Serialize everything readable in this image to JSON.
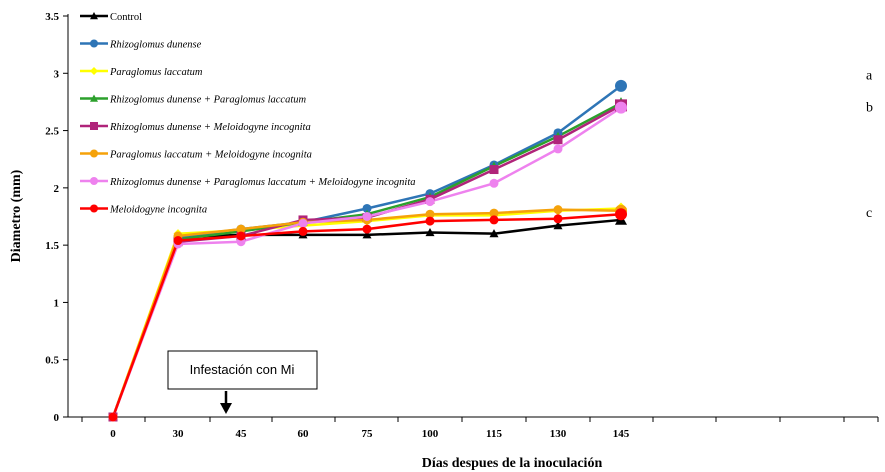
{
  "chart_data": {
    "type": "line",
    "title": "",
    "xlabel": "Días despues de la inoculación",
    "ylabel": "Diametro (mm)",
    "categories": [
      "0",
      "30",
      "45",
      "60",
      "75",
      "100",
      "115",
      "130",
      "145"
    ],
    "ylim": [
      0,
      3.5
    ],
    "yticks": [
      "0",
      "0.5",
      "1",
      "1.5",
      "2",
      "2.5",
      "3",
      "3.5"
    ],
    "grid": false,
    "legend_position": "top-left",
    "series": [
      {
        "name": "Control",
        "color": "#000000",
        "marker": "triangle",
        "italic": false,
        "values": [
          0,
          1.57,
          1.59,
          1.59,
          1.59,
          1.61,
          1.6,
          1.67,
          1.72
        ]
      },
      {
        "name": "Rhizoglomus dunense",
        "color": "#2e75b6",
        "marker": "circle",
        "italic": true,
        "values": [
          0,
          1.57,
          1.64,
          1.7,
          1.82,
          1.95,
          2.2,
          2.48,
          2.89
        ]
      },
      {
        "name": "Paraglomus laccatum",
        "color": "#ffff00",
        "marker": "diamond",
        "italic": true,
        "values": [
          0,
          1.6,
          1.63,
          1.67,
          1.71,
          1.76,
          1.76,
          1.8,
          1.82
        ]
      },
      {
        "name": "Rhizoglomus dunense + Paraglomus laccatum",
        "color": "#2ca02c",
        "marker": "triangle",
        "italic": true,
        "values": [
          0,
          1.55,
          1.62,
          1.7,
          1.77,
          1.92,
          2.19,
          2.45,
          2.74
        ]
      },
      {
        "name": "Rhizoglomus dunense + Meloidogyne incognita",
        "color": "#b0247a",
        "marker": "square",
        "italic": true,
        "values": [
          0,
          1.53,
          1.58,
          1.72,
          1.74,
          1.9,
          2.16,
          2.42,
          2.72
        ]
      },
      {
        "name": "Paraglomus laccatum + Meloidogyne incognita",
        "color": "#f5a20a",
        "marker": "circle",
        "italic": true,
        "values": [
          0,
          1.58,
          1.64,
          1.7,
          1.72,
          1.77,
          1.78,
          1.81,
          1.8
        ]
      },
      {
        "name": "Rhizoglomus dunense + Paraglomus laccatum + Meloidogyne incognita",
        "color": "#ee82ee",
        "marker": "circle",
        "italic": true,
        "values": [
          0,
          1.51,
          1.53,
          1.69,
          1.75,
          1.88,
          2.04,
          2.34,
          2.7
        ]
      },
      {
        "name": "Meloidogyne incognita",
        "color": "#ff0000",
        "marker": "circle",
        "italic": true,
        "values": [
          0,
          1.54,
          1.58,
          1.62,
          1.64,
          1.71,
          1.72,
          1.73,
          1.77
        ]
      }
    ],
    "significance_letters": [
      {
        "text": "a",
        "value": 2.98
      },
      {
        "text": "b",
        "value": 2.7
      },
      {
        "text": "c",
        "value": 1.78
      }
    ],
    "annotation": {
      "text": "Infestación con  Mi",
      "x_value": "33"
    }
  }
}
